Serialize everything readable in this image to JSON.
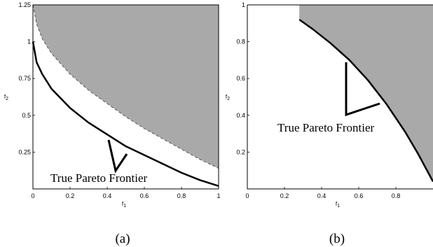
{
  "chart_data": [
    {
      "type": "area",
      "panel_label": "(a)",
      "xlabel": "f",
      "xlabel_sub": "1",
      "ylabel": "f",
      "ylabel_sub": "2",
      "xlim": [
        0,
        1
      ],
      "ylim": [
        0,
        1.25
      ],
      "xticks": [
        "0",
        "0.2",
        "0.4",
        "0.6",
        "0.8",
        "1"
      ],
      "yticks": [
        "0.25",
        "0.5",
        "0.75",
        "1",
        "1.25"
      ],
      "fill_color": "#a9a9a9",
      "series": [
        {
          "role": "true-pareto-frontier",
          "style": "solid",
          "x": [
            0,
            0.02,
            0.05,
            0.1,
            0.2,
            0.3,
            0.4,
            0.5,
            0.6,
            0.7,
            0.8,
            0.9,
            1
          ],
          "y": [
            1,
            0.86,
            0.78,
            0.68,
            0.55,
            0.45,
            0.37,
            0.29,
            0.23,
            0.17,
            0.11,
            0.06,
            0.02
          ]
        },
        {
          "role": "dominated-region-boundary",
          "style": "dashed",
          "x": [
            0,
            0.02,
            0.05,
            0.1,
            0.2,
            0.3,
            0.4,
            0.5,
            0.6,
            0.7,
            0.8,
            0.9,
            1
          ],
          "y": [
            1.25,
            1.12,
            1.02,
            0.92,
            0.78,
            0.67,
            0.58,
            0.49,
            0.41,
            0.34,
            0.27,
            0.2,
            0.14
          ]
        }
      ],
      "annotation": "True Pareto Frontier"
    },
    {
      "type": "area",
      "panel_label": "(b)",
      "xlabel": "f",
      "xlabel_sub": "1",
      "ylabel": "f",
      "ylabel_sub": "2",
      "xlim": [
        0,
        1
      ],
      "ylim": [
        0,
        1
      ],
      "xticks": [
        "0",
        "0.2",
        "0.4",
        "0.6",
        "0.8"
      ],
      "yticks": [
        "0.2",
        "0.4",
        "0.6",
        "0.8",
        "1"
      ],
      "fill_color": "#a9a9a9",
      "series": [
        {
          "role": "true-pareto-frontier",
          "style": "solid",
          "x": [
            0.28,
            0.35,
            0.45,
            0.55,
            0.65,
            0.75,
            0.85,
            0.92,
            1
          ],
          "y": [
            0.92,
            0.87,
            0.79,
            0.7,
            0.59,
            0.46,
            0.31,
            0.19,
            0.04
          ]
        }
      ],
      "annotation": "True Pareto Frontier"
    }
  ]
}
